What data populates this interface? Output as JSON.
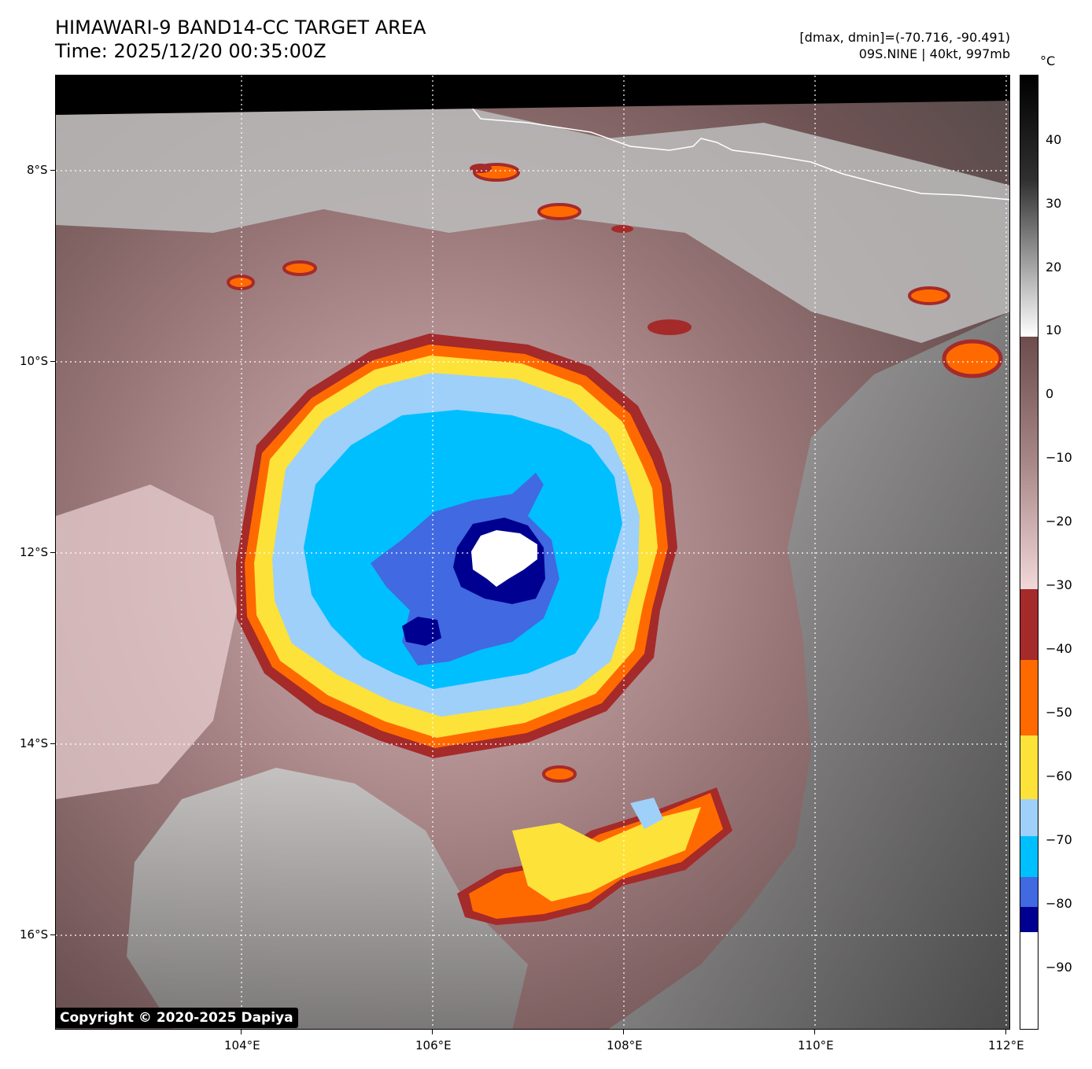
{
  "header": {
    "title_line1": "HIMAWARI-9 BAND14-CC TARGET AREA",
    "title_line2": "Time: 2025/12/20 00:35:00Z",
    "range_text": "[dmax, dmin]=(-70.716, -90.491)",
    "storm_text": "09S.NINE | 40kt, 997mb"
  },
  "map": {
    "lon_labels": [
      "104°E",
      "106°E",
      "108°E",
      "110°E",
      "112°E"
    ],
    "lat_labels": [
      "8°S",
      "10°S",
      "12°S",
      "14°S",
      "16°S"
    ],
    "copyright": "Copyright © 2020-2025 Dapiya"
  },
  "colorbar": {
    "unit": "°C",
    "tick_labels": [
      "40",
      "30",
      "20",
      "10",
      "0",
      "−10",
      "−20",
      "−30",
      "−40",
      "−50",
      "−60",
      "−70",
      "−80",
      "−90"
    ],
    "colors": {
      "white": "#ffffff",
      "navy": "#000090",
      "royal_blue": "#4169e1",
      "deep_sky": "#00bfff",
      "light_blue": "#9fd0fa",
      "yellow": "#fde23a",
      "orange": "#ff6a00",
      "dark_red": "#a52a2a",
      "pink": "#f2d8d9",
      "brown": "#6d4c4d"
    }
  }
}
